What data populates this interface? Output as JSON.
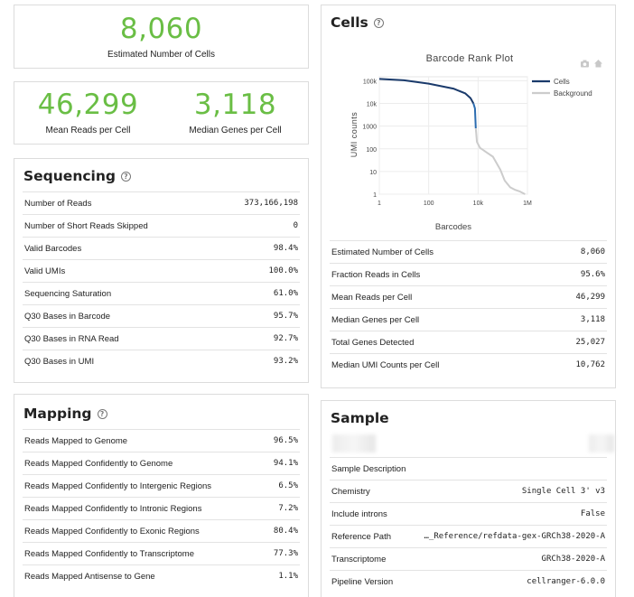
{
  "summary": {
    "cells": {
      "value": "8,060",
      "label": "Estimated Number of Cells"
    },
    "reads": {
      "value": "46,299",
      "label": "Mean Reads per Cell"
    },
    "genes": {
      "value": "3,118",
      "label": "Median Genes per Cell"
    }
  },
  "sequencing": {
    "title": "Sequencing",
    "rows": [
      {
        "k": "Number of Reads",
        "v": "373,166,198"
      },
      {
        "k": "Number of Short Reads Skipped",
        "v": "0"
      },
      {
        "k": "Valid Barcodes",
        "v": "98.4%"
      },
      {
        "k": "Valid UMIs",
        "v": "100.0%"
      },
      {
        "k": "Sequencing Saturation",
        "v": "61.0%"
      },
      {
        "k": "Q30 Bases in Barcode",
        "v": "95.7%"
      },
      {
        "k": "Q30 Bases in RNA Read",
        "v": "92.7%"
      },
      {
        "k": "Q30 Bases in UMI",
        "v": "93.2%"
      }
    ]
  },
  "mapping": {
    "title": "Mapping",
    "rows": [
      {
        "k": "Reads Mapped to Genome",
        "v": "96.5%"
      },
      {
        "k": "Reads Mapped Confidently to Genome",
        "v": "94.1%"
      },
      {
        "k": "Reads Mapped Confidently to Intergenic Regions",
        "v": "6.5%"
      },
      {
        "k": "Reads Mapped Confidently to Intronic Regions",
        "v": "7.2%"
      },
      {
        "k": "Reads Mapped Confidently to Exonic Regions",
        "v": "80.4%"
      },
      {
        "k": "Reads Mapped Confidently to Transcriptome",
        "v": "77.3%"
      },
      {
        "k": "Reads Mapped Antisense to Gene",
        "v": "1.1%"
      }
    ]
  },
  "cells": {
    "title": "Cells",
    "rows": [
      {
        "k": "Estimated Number of Cells",
        "v": "8,060"
      },
      {
        "k": "Fraction Reads in Cells",
        "v": "95.6%"
      },
      {
        "k": "Mean Reads per Cell",
        "v": "46,299"
      },
      {
        "k": "Median Genes per Cell",
        "v": "3,118"
      },
      {
        "k": "Total Genes Detected",
        "v": "25,027"
      },
      {
        "k": "Median UMI Counts per Cell",
        "v": "10,762"
      }
    ]
  },
  "sample": {
    "title": "Sample",
    "rows": [
      {
        "k": "Sample Description",
        "v": ""
      },
      {
        "k": "Chemistry",
        "v": "Single Cell 3' v3"
      },
      {
        "k": "Include introns",
        "v": "False"
      },
      {
        "k": "Reference Path",
        "v": "…_Reference/refdata-gex-GRCh38-2020-A"
      },
      {
        "k": "Transcriptome",
        "v": "GRCh38-2020-A"
      },
      {
        "k": "Pipeline Version",
        "v": "cellranger-6.0.0"
      }
    ]
  },
  "chart_data": {
    "type": "line",
    "title": "Barcode Rank Plot",
    "xlabel": "Barcodes",
    "ylabel": "UMI counts",
    "xscale": "log",
    "yscale": "log",
    "xlim": [
      1,
      1000000
    ],
    "ylim": [
      1,
      150000
    ],
    "xticks": [
      {
        "v": 1,
        "label": "1"
      },
      {
        "v": 100,
        "label": "100"
      },
      {
        "v": 10000,
        "label": "10k"
      },
      {
        "v": 1000000,
        "label": "1M"
      }
    ],
    "yticks": [
      {
        "v": 1,
        "label": "1"
      },
      {
        "v": 10,
        "label": "10"
      },
      {
        "v": 100,
        "label": "100"
      },
      {
        "v": 1000,
        "label": "1000"
      },
      {
        "v": 10000,
        "label": "10k"
      },
      {
        "v": 100000,
        "label": "100k"
      }
    ],
    "legend_position": "top-right",
    "series": [
      {
        "name": "Cells",
        "color": "#1a3a6b",
        "points": [
          [
            1,
            120000
          ],
          [
            10,
            105000
          ],
          [
            100,
            75000
          ],
          [
            1000,
            45000
          ],
          [
            3000,
            28000
          ],
          [
            5000,
            17000
          ],
          [
            6500,
            10000
          ]
        ]
      },
      {
        "name": "",
        "color": "#2b6cb0",
        "points": [
          [
            6500,
            10000
          ],
          [
            7500,
            6000
          ],
          [
            8060,
            800
          ]
        ]
      },
      {
        "name": "Background",
        "color": "#cccccc",
        "points": [
          [
            8060,
            800
          ],
          [
            9000,
            200
          ],
          [
            12000,
            110
          ],
          [
            20000,
            75
          ],
          [
            40000,
            45
          ],
          [
            80000,
            12
          ],
          [
            120000,
            4
          ],
          [
            200000,
            2
          ],
          [
            300000,
            1.6
          ],
          [
            500000,
            1.3
          ],
          [
            800000,
            1
          ]
        ]
      }
    ]
  }
}
